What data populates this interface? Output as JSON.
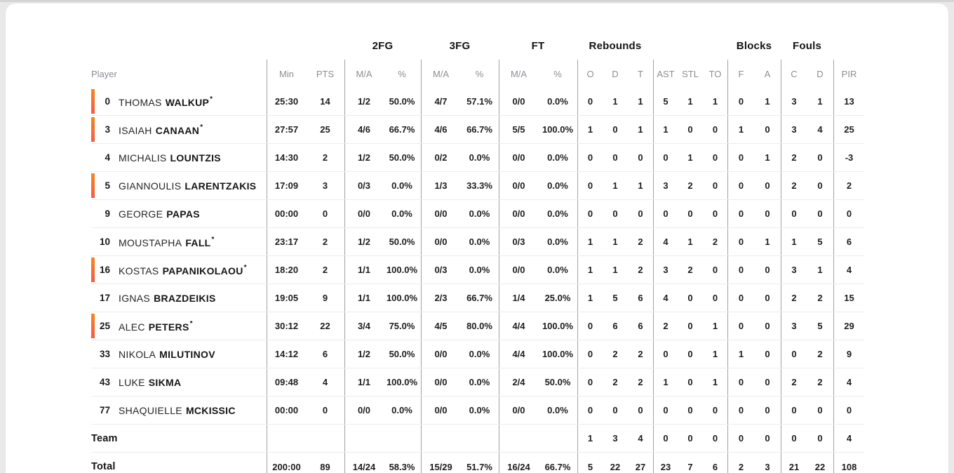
{
  "colors": {
    "page_bg": "#e9e9e9",
    "card_bg": "#ffffff",
    "accent_top": "#f8861c",
    "accent_bottom": "#f25c49",
    "divider": "#a3a3a3",
    "row_line": "#ececec",
    "muted": "#8b8f94",
    "text": "#1b1d1f"
  },
  "table": {
    "group_headers": {
      "fg2": "2FG",
      "fg3": "3FG",
      "ft": "FT",
      "rebounds": "Rebounds",
      "blocks": "Blocks",
      "fouls": "Fouls"
    },
    "column_headers": {
      "player": "Player",
      "min": "Min",
      "pts": "PTS",
      "ma": "M/A",
      "pct": "%",
      "o": "O",
      "d": "D",
      "t": "T",
      "ast": "AST",
      "stl": "STL",
      "to": "TO",
      "f": "F",
      "a": "A",
      "c": "C",
      "d2": "D",
      "pir": "PIR"
    },
    "rows": [
      {
        "number": "0",
        "first": "THOMAS",
        "last": "WALKUP",
        "starter": true,
        "on_court": true,
        "stats": [
          "25:30",
          "14",
          "1/2",
          "50.0%",
          "4/7",
          "57.1%",
          "0/0",
          "0.0%",
          "0",
          "1",
          "1",
          "5",
          "1",
          "1",
          "0",
          "1",
          "3",
          "1",
          "13"
        ]
      },
      {
        "number": "3",
        "first": "ISAIAH",
        "last": "CANAAN",
        "starter": true,
        "on_court": true,
        "stats": [
          "27:57",
          "25",
          "4/6",
          "66.7%",
          "4/6",
          "66.7%",
          "5/5",
          "100.0%",
          "1",
          "0",
          "1",
          "1",
          "0",
          "0",
          "1",
          "0",
          "3",
          "4",
          "25"
        ]
      },
      {
        "number": "4",
        "first": "MICHALIS",
        "last": "LOUNTZIS",
        "starter": false,
        "on_court": false,
        "stats": [
          "14:30",
          "2",
          "1/2",
          "50.0%",
          "0/2",
          "0.0%",
          "0/0",
          "0.0%",
          "0",
          "0",
          "0",
          "0",
          "1",
          "0",
          "0",
          "1",
          "2",
          "0",
          "-3"
        ]
      },
      {
        "number": "5",
        "first": "GIANNOULIS",
        "last": "LARENTZAKIS",
        "starter": false,
        "on_court": true,
        "stats": [
          "17:09",
          "3",
          "0/3",
          "0.0%",
          "1/3",
          "33.3%",
          "0/0",
          "0.0%",
          "0",
          "1",
          "1",
          "3",
          "2",
          "0",
          "0",
          "0",
          "2",
          "0",
          "2"
        ]
      },
      {
        "number": "9",
        "first": "GEORGE",
        "last": "PAPAS",
        "starter": false,
        "on_court": false,
        "stats": [
          "00:00",
          "0",
          "0/0",
          "0.0%",
          "0/0",
          "0.0%",
          "0/0",
          "0.0%",
          "0",
          "0",
          "0",
          "0",
          "0",
          "0",
          "0",
          "0",
          "0",
          "0",
          "0"
        ]
      },
      {
        "number": "10",
        "first": "MOUSTAPHA",
        "last": "FALL",
        "starter": true,
        "on_court": false,
        "stats": [
          "23:17",
          "2",
          "1/2",
          "50.0%",
          "0/0",
          "0.0%",
          "0/3",
          "0.0%",
          "1",
          "1",
          "2",
          "4",
          "1",
          "2",
          "0",
          "1",
          "1",
          "5",
          "6"
        ]
      },
      {
        "number": "16",
        "first": "KOSTAS",
        "last": "PAPANIKOLAOU",
        "starter": true,
        "on_court": true,
        "stats": [
          "18:20",
          "2",
          "1/1",
          "100.0%",
          "0/3",
          "0.0%",
          "0/0",
          "0.0%",
          "1",
          "1",
          "2",
          "3",
          "2",
          "0",
          "0",
          "0",
          "3",
          "1",
          "4"
        ]
      },
      {
        "number": "17",
        "first": "IGNAS",
        "last": "BRAZDEIKIS",
        "starter": false,
        "on_court": false,
        "stats": [
          "19:05",
          "9",
          "1/1",
          "100.0%",
          "2/3",
          "66.7%",
          "1/4",
          "25.0%",
          "1",
          "5",
          "6",
          "4",
          "0",
          "0",
          "0",
          "0",
          "2",
          "2",
          "15"
        ]
      },
      {
        "number": "25",
        "first": "ALEC",
        "last": "PETERS",
        "starter": true,
        "on_court": true,
        "stats": [
          "30:12",
          "22",
          "3/4",
          "75.0%",
          "4/5",
          "80.0%",
          "4/4",
          "100.0%",
          "0",
          "6",
          "6",
          "2",
          "0",
          "1",
          "0",
          "0",
          "3",
          "5",
          "29"
        ]
      },
      {
        "number": "33",
        "first": "NIKOLA",
        "last": "MILUTINOV",
        "starter": false,
        "on_court": false,
        "stats": [
          "14:12",
          "6",
          "1/2",
          "50.0%",
          "0/0",
          "0.0%",
          "4/4",
          "100.0%",
          "0",
          "2",
          "2",
          "0",
          "0",
          "1",
          "1",
          "0",
          "0",
          "2",
          "9"
        ]
      },
      {
        "number": "43",
        "first": "LUKE",
        "last": "SIKMA",
        "starter": false,
        "on_court": false,
        "stats": [
          "09:48",
          "4",
          "1/1",
          "100.0%",
          "0/0",
          "0.0%",
          "2/4",
          "50.0%",
          "0",
          "2",
          "2",
          "1",
          "0",
          "1",
          "0",
          "0",
          "2",
          "2",
          "4"
        ]
      },
      {
        "number": "77",
        "first": "SHAQUIELLE",
        "last": "MCKISSIC",
        "starter": false,
        "on_court": false,
        "stats": [
          "00:00",
          "0",
          "0/0",
          "0.0%",
          "0/0",
          "0.0%",
          "0/0",
          "0.0%",
          "0",
          "0",
          "0",
          "0",
          "0",
          "0",
          "0",
          "0",
          "0",
          "0",
          "0"
        ]
      }
    ],
    "team_row": {
      "label": "Team",
      "stats": [
        "",
        "",
        "",
        "",
        "",
        "",
        "",
        "",
        "1",
        "3",
        "4",
        "0",
        "0",
        "0",
        "0",
        "0",
        "0",
        "0",
        "4"
      ]
    },
    "total_row": {
      "label": "Total",
      "stats": [
        "200:00",
        "89",
        "14/24",
        "58.3%",
        "15/29",
        "51.7%",
        "16/24",
        "66.7%",
        "5",
        "22",
        "27",
        "23",
        "7",
        "6",
        "2",
        "3",
        "21",
        "22",
        "108"
      ]
    }
  }
}
